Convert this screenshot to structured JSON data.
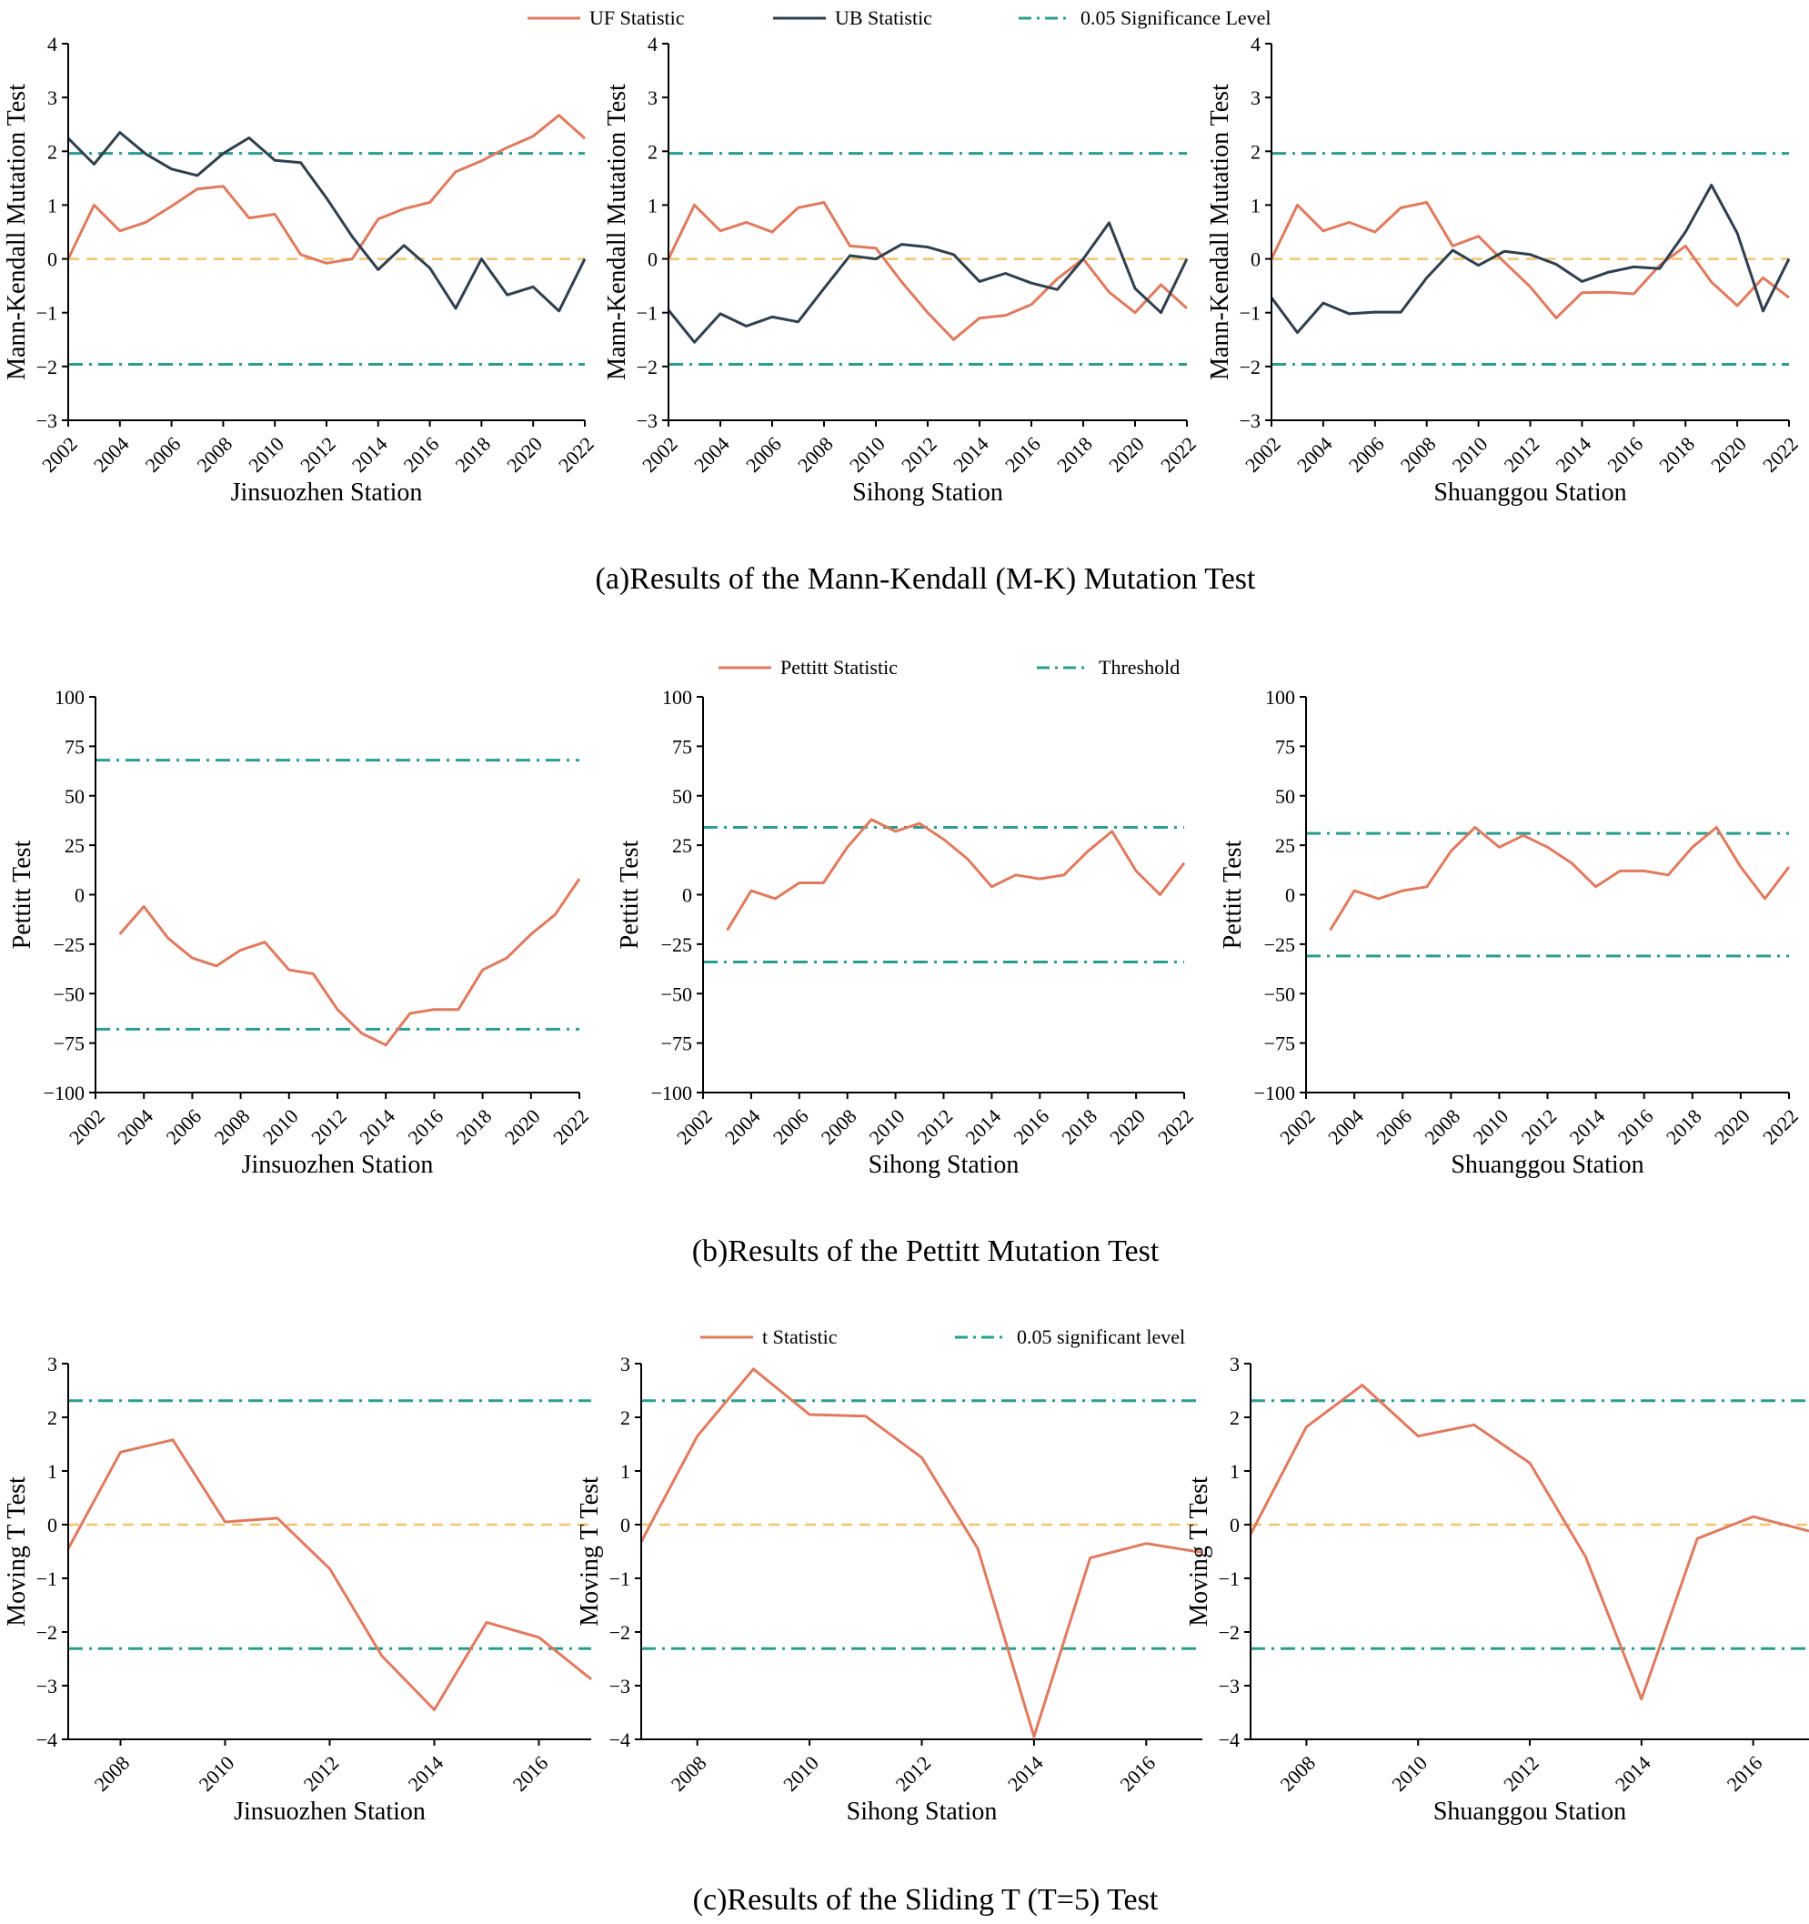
{
  "captions": {
    "a": "(a)Results of the Mann-Kendall (M-K) Mutation Test",
    "b": "(b)Results of the Pettitt Mutation Test",
    "c": "(c)Results of the Sliding T (T=5) Test"
  },
  "colors": {
    "uf": "#e07a5f",
    "ub": "#2f3f4f",
    "pettitt": "#e07a5f",
    "tstat": "#e07a5f",
    "significance": "#2a9d8f",
    "zero": "#f2c46d",
    "axis": "#000000"
  },
  "legends": {
    "a": [
      {
        "label": "UF Statistic",
        "style": "solid",
        "color": "#e07a5f"
      },
      {
        "label": "UB Statistic",
        "style": "solid",
        "color": "#2f3f4f"
      },
      {
        "label": "0.05 Significance Level",
        "style": "dashdot",
        "color": "#2a9d8f"
      }
    ],
    "b": [
      {
        "label": "Pettitt Statistic",
        "style": "solid",
        "color": "#e07a5f"
      },
      {
        "label": "Threshold",
        "style": "dashdot",
        "color": "#2a9d8f"
      }
    ],
    "c": [
      {
        "label": "t  Statistic",
        "style": "solid",
        "color": "#e07a5f"
      },
      {
        "label": "0.05 significant level",
        "style": "dashdot",
        "color": "#2a9d8f"
      }
    ]
  },
  "chart_data": [
    {
      "id": "mk-jinsuozhen",
      "type": "line",
      "row": "a",
      "station": "Jinsuozhen Station",
      "xlabel": "Jinsuozhen Station",
      "ylabel": "Mann-Kendall Mutation Test",
      "ylim": [
        -3,
        4
      ],
      "yticks": [
        -3,
        -2,
        -1,
        0,
        1,
        2,
        3,
        4
      ],
      "xlim": [
        2002,
        2022
      ],
      "xticks": [
        2002,
        2004,
        2006,
        2008,
        2010,
        2012,
        2014,
        2016,
        2018,
        2020,
        2022
      ],
      "reference_lines": [
        {
          "y": 1.96,
          "style": "dashdot"
        },
        {
          "y": -1.96,
          "style": "dashdot"
        },
        {
          "y": 0,
          "style": "dash"
        }
      ],
      "x": [
        2002,
        2003,
        2004,
        2005,
        2006,
        2007,
        2008,
        2009,
        2010,
        2011,
        2012,
        2013,
        2014,
        2015,
        2016,
        2017,
        2018,
        2019,
        2020,
        2021,
        2022
      ],
      "series": [
        {
          "name": "UF Statistic",
          "values": [
            0,
            1.0,
            0.52,
            0.68,
            0.98,
            1.3,
            1.35,
            0.76,
            0.83,
            0.08,
            -0.08,
            0.0,
            0.74,
            0.93,
            1.05,
            1.62,
            1.82,
            2.07,
            2.28,
            2.67,
            2.24
          ]
        },
        {
          "name": "UB Statistic",
          "values": [
            2.24,
            1.76,
            2.35,
            1.95,
            1.67,
            1.55,
            1.96,
            2.25,
            1.83,
            1.79,
            1.13,
            0.41,
            -0.2,
            0.25,
            -0.17,
            -0.92,
            0.0,
            -0.67,
            -0.52,
            -0.97,
            0.0
          ]
        }
      ]
    },
    {
      "id": "mk-sihong",
      "type": "line",
      "row": "a",
      "station": "Sihong Station",
      "xlabel": "Sihong Station",
      "ylabel": "Mann-Kendall Mutation Test",
      "ylim": [
        -3,
        4
      ],
      "yticks": [
        -3,
        -2,
        -1,
        0,
        1,
        2,
        3,
        4
      ],
      "xlim": [
        2002,
        2022
      ],
      "xticks": [
        2002,
        2004,
        2006,
        2008,
        2010,
        2012,
        2014,
        2016,
        2018,
        2020,
        2022
      ],
      "reference_lines": [
        {
          "y": 1.96,
          "style": "dashdot"
        },
        {
          "y": -1.96,
          "style": "dashdot"
        },
        {
          "y": 0,
          "style": "dash"
        }
      ],
      "x": [
        2002,
        2003,
        2004,
        2005,
        2006,
        2007,
        2008,
        2009,
        2010,
        2011,
        2012,
        2013,
        2014,
        2015,
        2016,
        2017,
        2018,
        2019,
        2020,
        2021,
        2022
      ],
      "series": [
        {
          "name": "UF Statistic",
          "values": [
            0,
            1.0,
            0.52,
            0.68,
            0.5,
            0.95,
            1.05,
            0.24,
            0.2,
            -0.43,
            -1.0,
            -1.5,
            -1.1,
            -1.05,
            -0.85,
            -0.37,
            0.0,
            -0.62,
            -1.0,
            -0.48,
            -0.92
          ]
        },
        {
          "name": "UB Statistic",
          "values": [
            -0.95,
            -1.55,
            -1.02,
            -1.25,
            -1.08,
            -1.17,
            -0.55,
            0.06,
            0.0,
            0.27,
            0.22,
            0.08,
            -0.42,
            -0.27,
            -0.45,
            -0.57,
            0.0,
            0.67,
            -0.55,
            -1.0,
            0.0
          ]
        }
      ]
    },
    {
      "id": "mk-shuanggou",
      "type": "line",
      "row": "a",
      "station": "Shuanggou Station",
      "xlabel": "Shuanggou Station",
      "ylabel": "Mann-Kendall Mutation Test",
      "ylim": [
        -3,
        4
      ],
      "yticks": [
        -3,
        -2,
        -1,
        0,
        1,
        2,
        3,
        4
      ],
      "xlim": [
        2002,
        2022
      ],
      "xticks": [
        2002,
        2004,
        2006,
        2008,
        2010,
        2012,
        2014,
        2016,
        2018,
        2020,
        2022
      ],
      "reference_lines": [
        {
          "y": 1.96,
          "style": "dashdot"
        },
        {
          "y": -1.96,
          "style": "dashdot"
        },
        {
          "y": 0,
          "style": "dash"
        }
      ],
      "x": [
        2002,
        2003,
        2004,
        2005,
        2006,
        2007,
        2008,
        2009,
        2010,
        2011,
        2012,
        2013,
        2014,
        2015,
        2016,
        2017,
        2018,
        2019,
        2020,
        2021,
        2022
      ],
      "series": [
        {
          "name": "UF Statistic",
          "values": [
            0,
            1.0,
            0.52,
            0.68,
            0.5,
            0.95,
            1.05,
            0.24,
            0.42,
            -0.06,
            -0.52,
            -1.1,
            -0.63,
            -0.62,
            -0.65,
            -0.12,
            0.24,
            -0.43,
            -0.87,
            -0.35,
            -0.72
          ]
        },
        {
          "name": "UB Statistic",
          "values": [
            -0.72,
            -1.37,
            -0.82,
            -1.02,
            -0.99,
            -0.99,
            -0.35,
            0.16,
            -0.12,
            0.14,
            0.08,
            -0.1,
            -0.42,
            -0.25,
            -0.15,
            -0.18,
            0.5,
            1.37,
            0.48,
            -0.97,
            0.0
          ]
        }
      ]
    },
    {
      "id": "pettitt-jinsuozhen",
      "type": "line",
      "row": "b",
      "station": "Jinsuozhen Station",
      "xlabel": "Jinsuozhen Station",
      "ylabel": "Pettitt Test",
      "ylim": [
        -100,
        100
      ],
      "yticks": [
        -100,
        -75,
        -50,
        -25,
        0,
        25,
        50,
        75,
        100
      ],
      "xlim": [
        2002,
        2022
      ],
      "xticks": [
        2002,
        2004,
        2006,
        2008,
        2010,
        2012,
        2014,
        2016,
        2018,
        2020,
        2022
      ],
      "reference_lines": [
        {
          "y": 68,
          "style": "dashdot"
        },
        {
          "y": -68,
          "style": "dashdot"
        }
      ],
      "x": [
        2003,
        2004,
        2005,
        2006,
        2007,
        2008,
        2009,
        2010,
        2011,
        2012,
        2013,
        2014,
        2015,
        2016,
        2017,
        2018,
        2019,
        2020,
        2021,
        2022
      ],
      "series": [
        {
          "name": "Pettitt Statistic",
          "values": [
            -20,
            -6,
            -22,
            -32,
            -36,
            -28,
            -24,
            -38,
            -40,
            -58,
            -70,
            -76,
            -60,
            -58,
            -58,
            -38,
            -32,
            -20,
            -10,
            8
          ]
        }
      ]
    },
    {
      "id": "pettitt-sihong",
      "type": "line",
      "row": "b",
      "station": "Sihong Station",
      "xlabel": "Sihong Station",
      "ylabel": "Pettitt Test",
      "ylim": [
        -100,
        100
      ],
      "yticks": [
        -100,
        -75,
        -50,
        -25,
        0,
        25,
        50,
        75,
        100
      ],
      "xlim": [
        2002,
        2022
      ],
      "xticks": [
        2002,
        2004,
        2006,
        2008,
        2010,
        2012,
        2014,
        2016,
        2018,
        2020,
        2022
      ],
      "reference_lines": [
        {
          "y": 34,
          "style": "dashdot"
        },
        {
          "y": -34,
          "style": "dashdot"
        }
      ],
      "x": [
        2003,
        2004,
        2005,
        2006,
        2007,
        2008,
        2009,
        2010,
        2011,
        2012,
        2013,
        2014,
        2015,
        2016,
        2017,
        2018,
        2019,
        2020,
        2021,
        2022
      ],
      "series": [
        {
          "name": "Pettitt Statistic",
          "values": [
            -18,
            2,
            -2,
            6,
            6,
            24,
            38,
            32,
            36,
            28,
            18,
            4,
            10,
            8,
            10,
            22,
            32,
            12,
            0,
            16
          ]
        }
      ]
    },
    {
      "id": "pettitt-shuanggou",
      "type": "line",
      "row": "b",
      "station": "Shuanggou Station",
      "xlabel": "Shuanggou Station",
      "ylabel": "Pettitt Test",
      "ylim": [
        -100,
        100
      ],
      "yticks": [
        -100,
        -75,
        -50,
        -25,
        0,
        25,
        50,
        75,
        100
      ],
      "xlim": [
        2002,
        2022
      ],
      "xticks": [
        2002,
        2004,
        2006,
        2008,
        2010,
        2012,
        2014,
        2016,
        2018,
        2020,
        2022
      ],
      "reference_lines": [
        {
          "y": 31,
          "style": "dashdot"
        },
        {
          "y": -31,
          "style": "dashdot"
        }
      ],
      "x": [
        2003,
        2004,
        2005,
        2006,
        2007,
        2008,
        2009,
        2010,
        2011,
        2012,
        2013,
        2014,
        2015,
        2016,
        2017,
        2018,
        2019,
        2020,
        2021,
        2022
      ],
      "series": [
        {
          "name": "Pettitt Statistic",
          "values": [
            -18,
            2,
            -2,
            2,
            4,
            22,
            34,
            24,
            30,
            24,
            16,
            4,
            12,
            12,
            10,
            24,
            34,
            14,
            -2,
            14
          ]
        }
      ]
    },
    {
      "id": "tt-jinsuozhen",
      "type": "line",
      "row": "c",
      "station": "Jinsuozhen Station",
      "xlabel": "Jinsuozhen Station",
      "ylabel": "Moving T Test",
      "ylim": [
        -4,
        3
      ],
      "yticks": [
        -4,
        -3,
        -2,
        -1,
        0,
        1,
        2,
        3
      ],
      "xlim": [
        2007,
        2017
      ],
      "xticks": [
        2008,
        2010,
        2012,
        2014,
        2016
      ],
      "reference_lines": [
        {
          "y": 2.31,
          "style": "dashdot"
        },
        {
          "y": -2.31,
          "style": "dashdot"
        },
        {
          "y": 0,
          "style": "dash"
        }
      ],
      "x": [
        2007,
        2008,
        2009,
        2010,
        2011,
        2012,
        2013,
        2014,
        2015,
        2016,
        2017
      ],
      "series": [
        {
          "name": "t  Statistic",
          "values": [
            -0.45,
            1.35,
            1.58,
            0.05,
            0.12,
            -0.82,
            -2.45,
            -3.45,
            -1.82,
            -2.1,
            -2.88
          ]
        }
      ]
    },
    {
      "id": "tt-sihong",
      "type": "line",
      "row": "c",
      "station": "Sihong Station",
      "xlabel": "Sihong Station",
      "ylabel": "Moving T Test",
      "ylim": [
        -4,
        3
      ],
      "yticks": [
        -4,
        -3,
        -2,
        -1,
        0,
        1,
        2,
        3
      ],
      "xlim": [
        2007,
        2017
      ],
      "xticks": [
        2008,
        2010,
        2012,
        2014,
        2016
      ],
      "reference_lines": [
        {
          "y": 2.31,
          "style": "dashdot"
        },
        {
          "y": -2.31,
          "style": "dashdot"
        },
        {
          "y": 0,
          "style": "dash"
        }
      ],
      "x": [
        2007,
        2008,
        2009,
        2010,
        2011,
        2012,
        2013,
        2014,
        2015,
        2016,
        2017
      ],
      "series": [
        {
          "name": "t  Statistic",
          "values": [
            -0.32,
            1.65,
            2.9,
            2.05,
            2.02,
            1.25,
            -0.45,
            -3.95,
            -0.62,
            -0.35,
            -0.52
          ]
        }
      ]
    },
    {
      "id": "tt-shuanggou",
      "type": "line",
      "row": "c",
      "station": "Shuanggou Station",
      "xlabel": "Shuanggou Station",
      "ylabel": "Moving T Test",
      "ylim": [
        -4,
        3
      ],
      "yticks": [
        -4,
        -3,
        -2,
        -1,
        0,
        1,
        2,
        3
      ],
      "xlim": [
        2007,
        2017
      ],
      "xticks": [
        2008,
        2010,
        2012,
        2014,
        2016
      ],
      "reference_lines": [
        {
          "y": 2.31,
          "style": "dashdot"
        },
        {
          "y": -2.31,
          "style": "dashdot"
        },
        {
          "y": 0,
          "style": "dash"
        }
      ],
      "x": [
        2007,
        2008,
        2009,
        2010,
        2011,
        2012,
        2013,
        2014,
        2015,
        2016,
        2017
      ],
      "series": [
        {
          "name": "t  Statistic",
          "values": [
            -0.18,
            1.82,
            2.6,
            1.65,
            1.86,
            1.15,
            -0.6,
            -3.25,
            -0.26,
            0.15,
            -0.12
          ]
        }
      ]
    }
  ]
}
